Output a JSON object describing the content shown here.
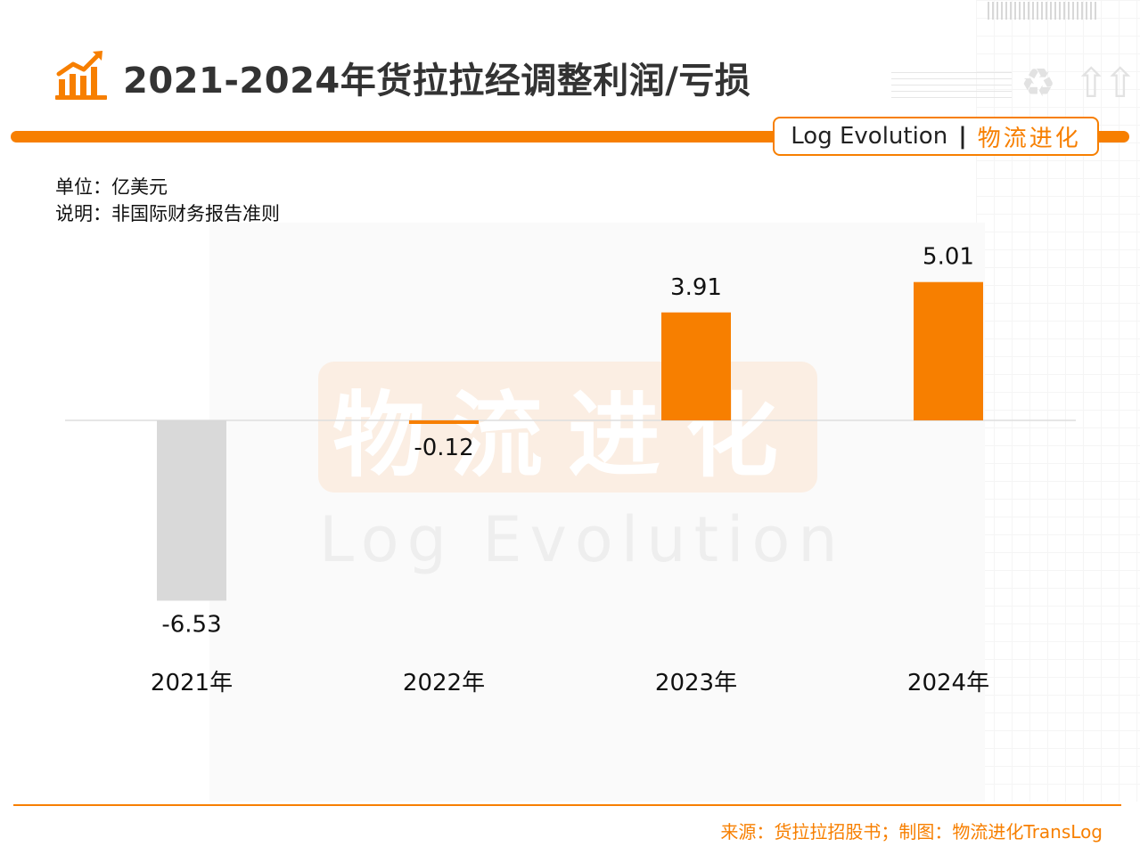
{
  "header": {
    "title": "2021-2024年货拉拉经调整利润/亏损",
    "icon": "bar-chart-trend-icon"
  },
  "brand": {
    "en": "Log Evolution",
    "separator": "|",
    "cn": "物流进化"
  },
  "watermark": {
    "cn": "物流进化",
    "en": "Log Evolution"
  },
  "meta": {
    "unit": "单位：亿美元",
    "note": "说明：非国际财务报告准则"
  },
  "chart_data": {
    "type": "bar",
    "categories": [
      "2021年",
      "2022年",
      "2023年",
      "2024年"
    ],
    "values": [
      -6.53,
      -0.12,
      3.91,
      5.01
    ],
    "value_labels": [
      "-6.53",
      "-0.12",
      "3.91",
      "5.01"
    ],
    "colors": [
      "#d9d9d9",
      "#f77f00",
      "#f77f00",
      "#f77f00"
    ],
    "baseline": 0,
    "title": "2021-2024年货拉拉经调整利润/亏损",
    "xlabel": "",
    "ylabel": "",
    "grid": false,
    "legend": "none"
  },
  "footer": {
    "source": "来源：货拉拉招股书；制图：物流进化TransLog"
  },
  "colors": {
    "accent": "#f77f00",
    "loss": "#d9d9d9",
    "title": "#333333"
  }
}
